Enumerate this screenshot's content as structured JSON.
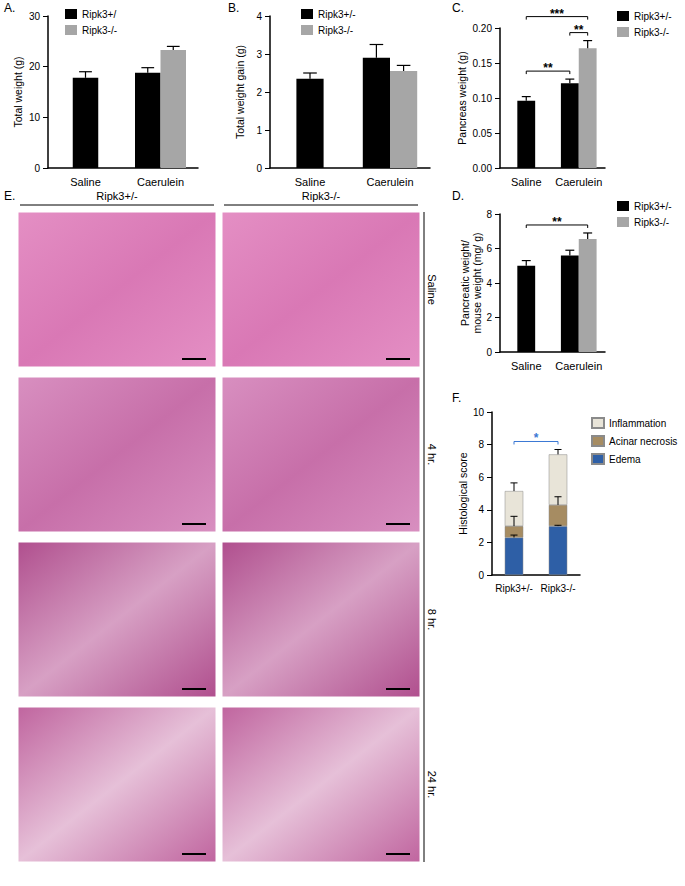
{
  "chart_data": [
    {
      "type": "bar",
      "title": "A.",
      "ylabel": "Total weight (g)",
      "categories": [
        "Saline",
        "Caerulein"
      ],
      "series": [
        {
          "name": "Ripk3+/",
          "color": "#000000",
          "values": [
            17.8,
            18.8
          ],
          "errors": [
            1.2,
            1.0
          ]
        },
        {
          "name": "Ripk3-/-",
          "color": "#a6a6a6",
          "values": [
            null,
            23.3
          ],
          "errors": [
            null,
            0.7
          ]
        }
      ],
      "ylim": [
        0,
        30
      ],
      "yticks": [
        0,
        10,
        20,
        30
      ],
      "grid": false,
      "legend": "upper left",
      "annotations": []
    },
    {
      "type": "bar",
      "title": "B.",
      "ylabel": "Total weight gain (g)",
      "categories": [
        "Saline",
        "Caerulein"
      ],
      "series": [
        {
          "name": "Ripk3+/-",
          "color": "#000000",
          "values": [
            2.35,
            2.9
          ],
          "errors": [
            0.15,
            0.35
          ]
        },
        {
          "name": "Ripk3-/-",
          "color": "#a6a6a6",
          "values": [
            null,
            2.55
          ],
          "errors": [
            null,
            0.15
          ]
        }
      ],
      "ylim": [
        0,
        4
      ],
      "yticks": [
        0,
        1,
        2,
        3,
        4
      ],
      "grid": false,
      "legend": "upper left",
      "annotations": []
    },
    {
      "type": "bar",
      "title": "C.",
      "ylabel": "Pancreas weight (g)",
      "categories": [
        "Saline",
        "Caerulein"
      ],
      "series": [
        {
          "name": "Ripk3+/-",
          "color": "#000000",
          "values": [
            0.096,
            0.121
          ],
          "errors": [
            0.006,
            0.006
          ]
        },
        {
          "name": "Ripk3-/-",
          "color": "#a6a6a6",
          "values": [
            null,
            0.171
          ],
          "errors": [
            null,
            0.011
          ]
        }
      ],
      "ylim": [
        0,
        0.2
      ],
      "yticks": [
        {
          "value": 0,
          "label": "0.00"
        },
        {
          "value": 0.05,
          "label": "0.05"
        },
        {
          "value": 0.1,
          "label": "0.10"
        },
        {
          "value": 0.15,
          "label": "0.15"
        },
        {
          "value": 0.2,
          "label": "0.20"
        }
      ],
      "grid": false,
      "legend": "upper right",
      "annotations": [
        {
          "from": [
            "Ripk3+/-",
            "Saline"
          ],
          "to": [
            "Ripk3+/-",
            "Caerulein"
          ],
          "text": "**"
        },
        {
          "from": [
            "Ripk3+/-",
            "Caerulein"
          ],
          "to": [
            "Ripk3-/-",
            "Caerulein"
          ],
          "text": "**"
        },
        {
          "from": [
            "Ripk3+/-",
            "Saline"
          ],
          "to": [
            "Ripk3-/-",
            "Caerulein"
          ],
          "text": "***"
        }
      ]
    },
    {
      "type": "bar",
      "title": "D.",
      "ylabel": "Pancreatic weight/\nmouse weight (mg/ g)",
      "categories": [
        "Saline",
        "Caerulein"
      ],
      "series": [
        {
          "name": "Ripk3+/-",
          "color": "#000000",
          "values": [
            5.0,
            5.6
          ],
          "errors": [
            0.3,
            0.3
          ]
        },
        {
          "name": "Ripk3-/-",
          "color": "#a6a6a6",
          "values": [
            null,
            6.55
          ],
          "errors": [
            null,
            0.35
          ]
        }
      ],
      "ylim": [
        0,
        8
      ],
      "yticks": [
        0,
        2,
        4,
        6,
        8
      ],
      "grid": false,
      "legend": "upper right",
      "annotations": [
        {
          "from": [
            "Ripk3+/-",
            "Saline"
          ],
          "to": [
            "Ripk3-/-",
            "Caerulein"
          ],
          "text": "**"
        }
      ]
    },
    {
      "type": "bar",
      "title": "F.",
      "ylabel": "Histological score",
      "stacked": true,
      "categories": [
        "Ripk3+/-",
        "Ripk3-/-"
      ],
      "series": [
        {
          "name": "Edema",
          "color": "#2e5fa6",
          "values": [
            2.3,
            3.0
          ],
          "errors": [
            0.15,
            0.05
          ]
        },
        {
          "name": "Acinar necrosis",
          "color": "#a68c62",
          "values": [
            0.7,
            1.3
          ],
          "errors": [
            0.6,
            0.5
          ]
        },
        {
          "name": "Inflammation",
          "color": "#e8e4d8",
          "values": [
            2.15,
            3.1
          ],
          "errors": [
            0.5,
            0.3
          ]
        }
      ],
      "ylim": [
        0,
        10
      ],
      "yticks": [
        0,
        2,
        4,
        6,
        8,
        10
      ],
      "grid": false,
      "legend": "upper right",
      "annotations": [
        {
          "from": "Ripk3+/-",
          "to": "Ripk3-/-",
          "text": "*",
          "color": "#3a78d4"
        }
      ]
    }
  ],
  "images": {
    "title": "E.",
    "columns": [
      "Ripk3+/-",
      "Ripk3-/-"
    ],
    "rows": [
      "Saline",
      "4 hr.",
      "8 hr.",
      "24 hr."
    ]
  }
}
